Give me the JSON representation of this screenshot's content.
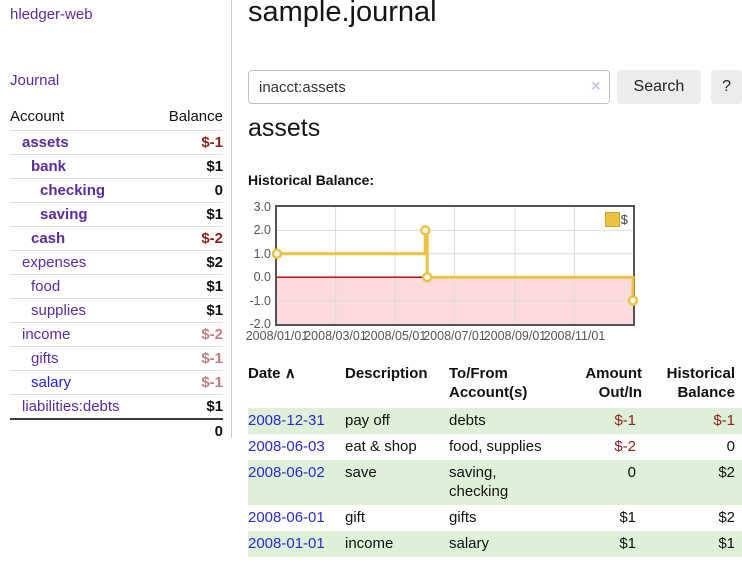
{
  "app": {
    "brand": "hledger-web",
    "nav": {
      "journal": "Journal"
    }
  },
  "icons": {
    "clear_search": "×",
    "sort_ascending": "∧"
  },
  "colors": {
    "link_purple": "#5a2ca0",
    "link_blue": "#2222dd",
    "negative_strong": "#8f1f1f",
    "negative_muted": "#c47e7e",
    "row_shade_green": "#dff0d8",
    "series_gold": "#EDC240"
  },
  "sidebar": {
    "headers": {
      "account": "Account",
      "balance": "Balance"
    },
    "accounts": [
      {
        "name": "assets",
        "balance": "$-1"
      },
      {
        "name": "bank",
        "balance": "$1"
      },
      {
        "name": "checking",
        "balance": "0"
      },
      {
        "name": "saving",
        "balance": "$1"
      },
      {
        "name": "cash",
        "balance": "$-2"
      },
      {
        "name": "expenses",
        "balance": "$2"
      },
      {
        "name": "food",
        "balance": "$1"
      },
      {
        "name": "supplies",
        "balance": "$1"
      },
      {
        "name": "income",
        "balance": "$-2"
      },
      {
        "name": "gifts",
        "balance": "$-1"
      },
      {
        "name": "salary",
        "balance": "$-1"
      },
      {
        "name": "liabilities:debts",
        "balance": "$1"
      }
    ],
    "total": "0"
  },
  "header": {
    "title": "sample.journal"
  },
  "search": {
    "value": "inacct:assets",
    "button": "Search",
    "help_button": "?"
  },
  "account_page": {
    "heading": "assets",
    "chart_label": "Historical Balance:"
  },
  "chart_data": {
    "type": "line",
    "title": "Historical Balance",
    "style": "step-after",
    "series": [
      {
        "name": "$",
        "color": "#EDC240",
        "points": [
          [
            "2008-01-01",
            1
          ],
          [
            "2008-06-01",
            2
          ],
          [
            "2008-06-03",
            0
          ],
          [
            "2008-12-31",
            -1
          ]
        ]
      }
    ],
    "x_range": [
      "2008-01-01",
      "2008-12-31"
    ],
    "ylim": [
      -2.0,
      3.0
    ],
    "yticks": [
      "3.0",
      "2.0",
      "1.0",
      "0.0",
      "-1.0",
      "-2.0"
    ],
    "xticks": [
      "2008/01/01",
      "2008/03/01",
      "2008/05/01",
      "2008/07/01",
      "2008/09/01",
      "2008/11/01"
    ],
    "grid": true,
    "grid_color": "#dcdcdc",
    "zero_line_color": "#a00000",
    "negative_region_color": "#fbdbdb",
    "legend_position": "top-right"
  },
  "register": {
    "headers": {
      "date": "Date",
      "description": "Description",
      "accounts": "To/From Account(s)",
      "amount": "Amount Out/In",
      "balance": "Historical Balance"
    },
    "rows": [
      {
        "date": "2008-12-31",
        "description": "pay off",
        "accounts": "debts",
        "amount": "$-1",
        "balance": "$-1"
      },
      {
        "date": "2008-06-03",
        "description": "eat & shop",
        "accounts": "food, supplies",
        "amount": "$-2",
        "balance": "0"
      },
      {
        "date": "2008-06-02",
        "description": "save",
        "accounts": "saving, checking",
        "amount": "0",
        "balance": "$2"
      },
      {
        "date": "2008-06-01",
        "description": "gift",
        "accounts": "gifts",
        "amount": "$1",
        "balance": "$2"
      },
      {
        "date": "2008-01-01",
        "description": "income",
        "accounts": "salary",
        "amount": "$1",
        "balance": "$1"
      }
    ]
  }
}
